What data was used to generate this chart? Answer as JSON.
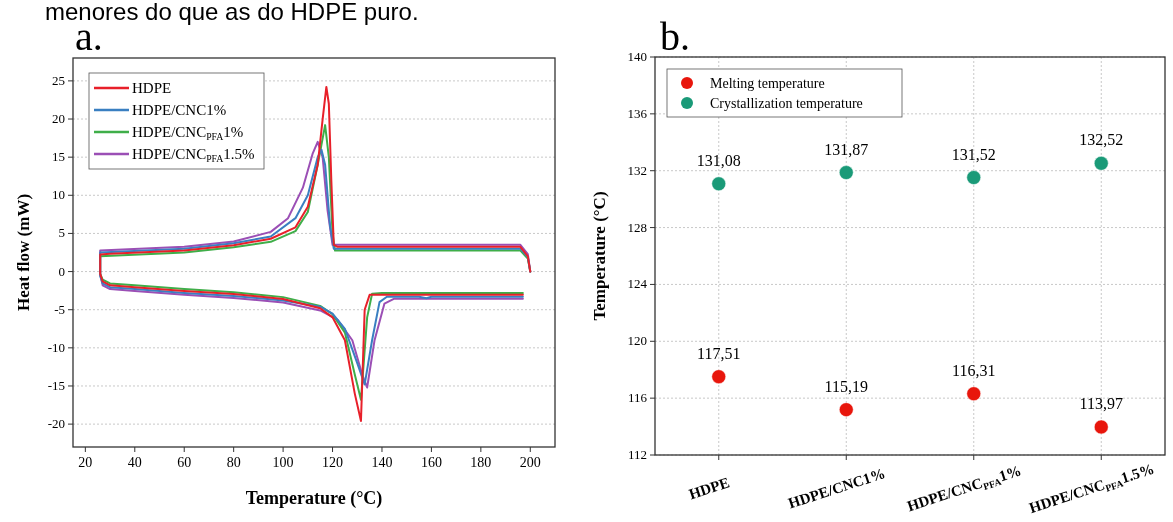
{
  "chart_data": [
    {
      "type": "line",
      "title": "a.",
      "annotations": [
        "menores do que as do HDPE puro."
      ],
      "xlabel": "Temperature (°C)",
      "ylabel": "Heat flow (mW)",
      "xlim": [
        15,
        210
      ],
      "ylim": [
        -23,
        28
      ],
      "xticks": [
        20,
        40,
        60,
        80,
        100,
        120,
        140,
        160,
        180,
        200
      ],
      "yticks": [
        -20,
        -15,
        -10,
        -5,
        0,
        5,
        10,
        15,
        20,
        25
      ],
      "grid": "y",
      "legend": "top left",
      "line_style": "solid",
      "marker": "none",
      "series": [
        {
          "name": "HDPE",
          "color": "#e8202a",
          "x": [
            197,
            160,
            140,
            135,
            133,
            131.5,
            129,
            125,
            120,
            115,
            100,
            80,
            60,
            40,
            30,
            27,
            26,
            26,
            30,
            60,
            80,
            95,
            105,
            110,
            114,
            116,
            117.5,
            118.5,
            119.5,
            120.5,
            122,
            160,
            190,
            196,
            199,
            200
          ],
          "values": [
            -3.05,
            -3.05,
            -3.05,
            -3.05,
            -5,
            -19.6,
            -16,
            -9,
            -6,
            -4.8,
            -3.6,
            -2.95,
            -2.55,
            -2.05,
            -1.8,
            -1.3,
            -0.3,
            2.25,
            2.35,
            2.75,
            3.45,
            4.3,
            5.8,
            8.5,
            14,
            20,
            24.2,
            22,
            12,
            3.5,
            3.25,
            3.25,
            3.25,
            3.25,
            2,
            0
          ]
        },
        {
          "name": "HDPE/CNC1%",
          "color": "#3a7fc1",
          "x": [
            197,
            160,
            158,
            155,
            142,
            139,
            136,
            133,
            130,
            125,
            120,
            115,
            100,
            80,
            60,
            40,
            30,
            27,
            26,
            26,
            60,
            80,
            95,
            105,
            110,
            114,
            115.5,
            117,
            119,
            120.5,
            160,
            196,
            199,
            200
          ],
          "values": [
            -3.3,
            -3.3,
            -3.5,
            -3.3,
            -3.3,
            -4,
            -9,
            -14.8,
            -12,
            -7.5,
            -5.5,
            -4.6,
            -3.8,
            -3.2,
            -2.8,
            -2.3,
            -2.05,
            -1.55,
            -0.6,
            2.5,
            3,
            3.7,
            4.6,
            7,
            10,
            15,
            16,
            14,
            6,
            3,
            3,
            3,
            1.9,
            0
          ]
        },
        {
          "name": "HDPE/CNC$_{PFA}$1%",
          "color": "#3fae49",
          "x": [
            197,
            160,
            140,
            136,
            134,
            131.5,
            129,
            125,
            120,
            115,
            100,
            80,
            60,
            40,
            30,
            27,
            26,
            26,
            60,
            80,
            95,
            105,
            110,
            114,
            117,
            118.5,
            120,
            121,
            160,
            196,
            199,
            200
          ],
          "values": [
            -2.8,
            -2.8,
            -2.8,
            -2.9,
            -6,
            -16.8,
            -13.5,
            -8,
            -5.6,
            -4.5,
            -3.35,
            -2.7,
            -2.3,
            -1.8,
            -1.55,
            -1.05,
            -0.3,
            2,
            2.5,
            3.2,
            3.9,
            5.3,
            7.8,
            14,
            19.2,
            15,
            5,
            2.75,
            2.75,
            2.75,
            1.7,
            0
          ]
        },
        {
          "name": "HDPE/CNC$_{PFA}$1.5%",
          "color": "#9b4fb5",
          "x": [
            197,
            160,
            145,
            141,
            137,
            134,
            132,
            128,
            122,
            115,
            100,
            80,
            60,
            40,
            30,
            27,
            26,
            26,
            60,
            80,
            95,
            102,
            108,
            112,
            114,
            116,
            118,
            120,
            160,
            196,
            199,
            200
          ],
          "values": [
            -3.55,
            -3.55,
            -3.55,
            -4.2,
            -9,
            -15.2,
            -13.5,
            -9,
            -6.3,
            -5.1,
            -4.05,
            -3.45,
            -3.05,
            -2.55,
            -2.3,
            -1.8,
            -0.3,
            2.75,
            3.25,
            3.95,
            5.2,
            7,
            11,
            15.5,
            17,
            15,
            8,
            3.5,
            3.5,
            3.5,
            2.3,
            0
          ]
        }
      ]
    },
    {
      "type": "scatter",
      "title": "b.",
      "ylabel": "Temperature (°C)",
      "categories": [
        "HDPE",
        "HDPE/CNC1%",
        "HDPE/CNC$_{PFA}$1%",
        "HDPE/CNC$_{PFA}$1.5%"
      ],
      "ylim": [
        112,
        140
      ],
      "yticks": [
        112,
        116,
        120,
        124,
        128,
        132,
        136,
        140
      ],
      "grid": true,
      "legend": "top left",
      "marker": "circle",
      "series": [
        {
          "name": "Melting temperature",
          "color": "#e8160c",
          "values": [
            117.51,
            115.19,
            116.31,
            113.97
          ],
          "value_labels": [
            "117,51",
            "115,19",
            "116,31",
            "113,97"
          ]
        },
        {
          "name": "Crystallization temperature",
          "color": "#1a9a78",
          "values": [
            131.08,
            131.87,
            131.52,
            132.52
          ],
          "value_labels": [
            "131,08",
            "131,87",
            "131,52",
            "132,52"
          ]
        }
      ]
    }
  ]
}
